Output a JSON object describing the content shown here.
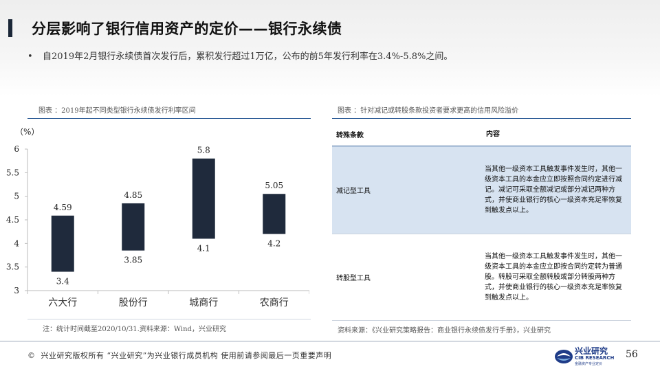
{
  "slide": {
    "title": "分层影响了银行信用资产的定价——银行永续债",
    "bullet": "自2019年2月银行永续债首次发行后，累积发行超过1万亿，公布的前5年发行利率在3.4%-5.8%之间。",
    "page_number": "56"
  },
  "left_panel": {
    "caption": "图表 ：2019年起不同类型银行永续债发行利率区间",
    "unit": "（%）",
    "note": "注：统计时间截至2020/10/31.资料来源：Wind，兴业研究"
  },
  "chart_data": {
    "type": "bar",
    "subtype": "floating-range",
    "categories": [
      "六大行",
      "股份行",
      "城商行",
      "农商行"
    ],
    "low": [
      3.4,
      3.85,
      4.1,
      4.2
    ],
    "high": [
      4.59,
      4.85,
      5.8,
      5.05
    ],
    "low_labels": [
      "3.4",
      "3.85",
      "4.1",
      "4.2"
    ],
    "high_labels": [
      "4.59",
      "4.85",
      "5.8",
      "5.05"
    ],
    "ylim": [
      3,
      6
    ],
    "yticks": [
      3,
      3.5,
      4,
      4.5,
      5,
      5.5,
      6
    ],
    "ytick_labels": [
      "3",
      "3.5",
      "4",
      "4.5",
      "5",
      "5.5",
      "6"
    ],
    "bar_color": "#1f2a3c",
    "grid": false
  },
  "right_panel": {
    "caption": "图表 ：针对减记或转股条款投资者要求更高的信用风险溢价",
    "headers": [
      "转殊条款",
      "内容"
    ],
    "rows": [
      {
        "term": "减记型工具",
        "content": "当其他一级资本工具触发事件发生时，其他一级资本工具的本金应立即按照合同约定进行减记。减记可采取全额减记或部分减记两种方式，并使商业银行的核心一级资本充足率恢复到触发点以上。"
      },
      {
        "term": "转股型工具",
        "content": "当其他一级资本工具触发事件发生时，其他一级资本工具的本金应立即按合同约定转为普通股。转股可采取全额转股或部分转股两种方式，并使商业银行的核心一级资本充足率恢复到触发点以上。"
      }
    ],
    "source": "资料来源：《兴业研究策略报告：商业银行永续债发行手册》，兴业研究",
    "highlight_color": "#d7e3f1"
  },
  "footer": {
    "copyright_symbol": "©",
    "text": "兴业研究版权所有  “兴业研究”为兴业银行成员机构  使用前请参阅最后一页重要声明",
    "logo_cn": "兴业研究",
    "logo_en": "CIB RESEARCH",
    "logo_sub": "金融资产专业定价"
  }
}
